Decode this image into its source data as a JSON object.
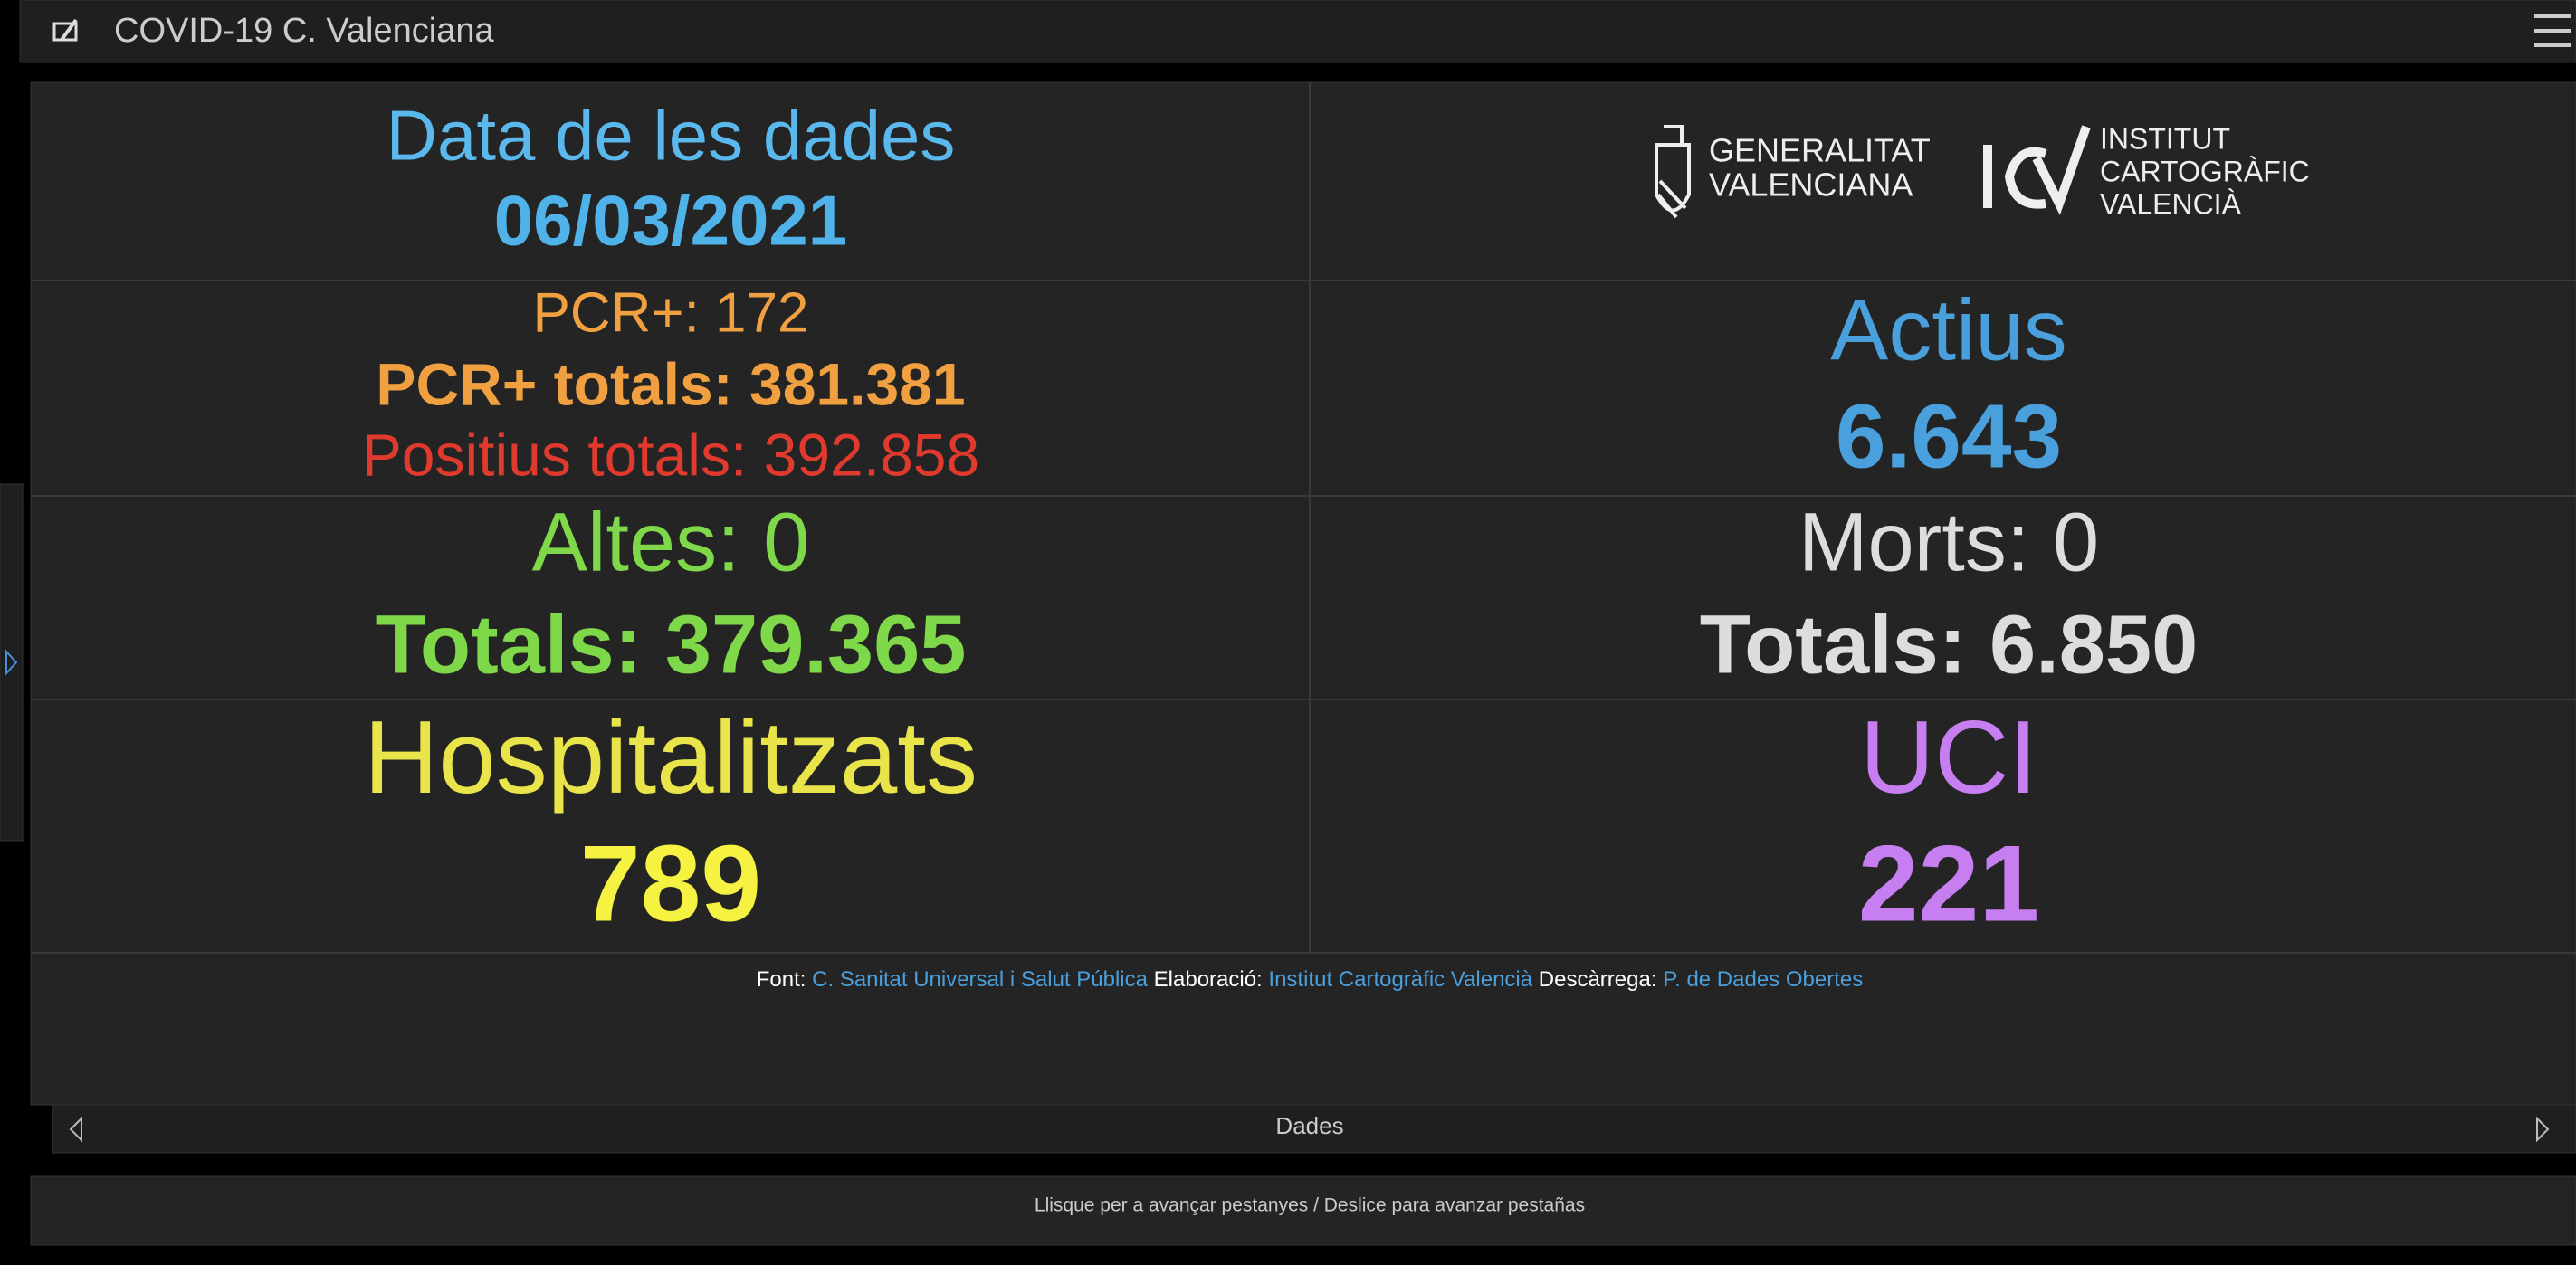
{
  "header": {
    "title": "COVID-19 C. Valenciana"
  },
  "panels": {
    "date_label": "Data de les dades",
    "date": "06/03/2021",
    "pcr_daily": "PCR+: 172",
    "pcr_total": "PCR+ totals: 381.381",
    "positius_total": "Positius totals: 392.858",
    "actius_label": "Actius",
    "actius_value": "6.643",
    "altes": "Altes: 0",
    "altes_total": "Totals: 379.365",
    "morts": "Morts: 0",
    "morts_total": "Totals: 6.850",
    "hosp_label": "Hospitalitzats",
    "hosp_value": "789",
    "uci_label": "UCI",
    "uci_value": "221"
  },
  "logos": {
    "gva": [
      "GENERALITAT",
      "VALENCIANA"
    ],
    "icv": [
      "INSTITUT",
      "CARTOGRÀFIC",
      "VALENCIÀ"
    ]
  },
  "footer": [
    {
      "label": "Font:",
      "link": "C. Sanitat Universal i Salut Pública"
    },
    {
      "label": "Elaboració:",
      "link": "Institut Cartogràfic Valencià"
    },
    {
      "label": "Descàrrega:",
      "link": "P. de Dades Obertes"
    }
  ],
  "nav": {
    "label": "Dades"
  },
  "hint": "Llisque per a avançar pestanyes / Deslice para avanzar pestañas"
}
